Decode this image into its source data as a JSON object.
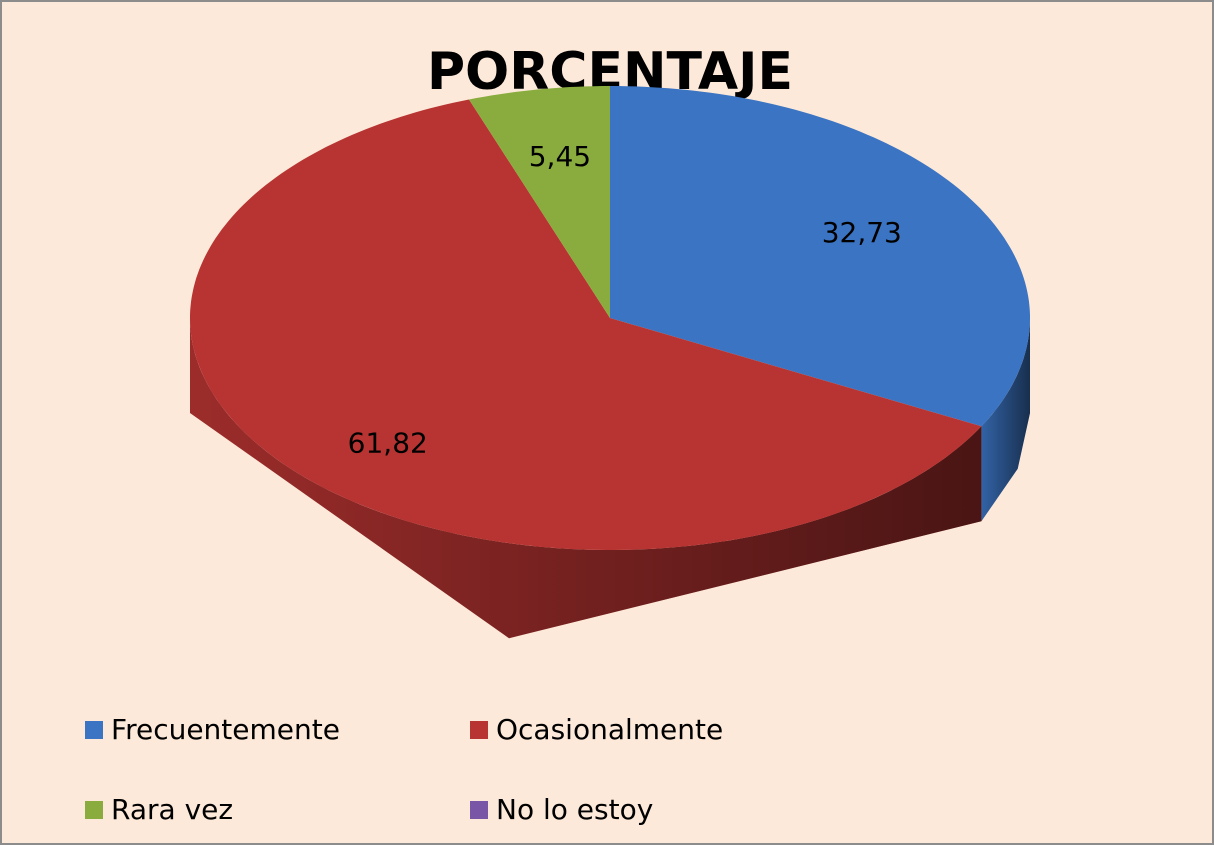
{
  "chart_data": {
    "type": "pie",
    "title": "PORCENTAJE",
    "categories": [
      "Frecuentemente",
      "Ocasionalmente",
      "Rara vez",
      "No lo estoy"
    ],
    "values": [
      32.73,
      61.82,
      5.45,
      0
    ],
    "value_labels": [
      "32,73",
      "61,82",
      "5,45",
      null
    ],
    "colors": [
      "#3b74c2",
      "#b73432",
      "#8aac3e",
      "#7a57a6"
    ]
  }
}
